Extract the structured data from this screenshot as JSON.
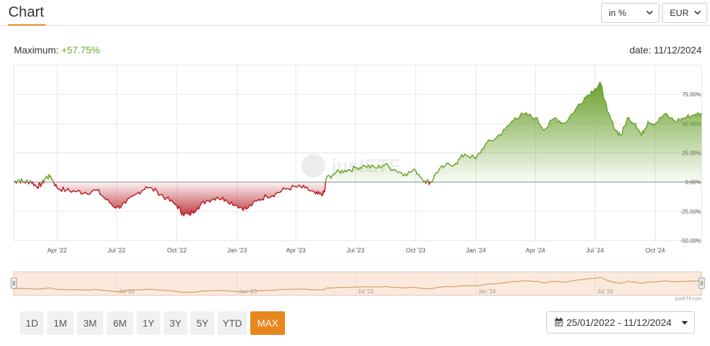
{
  "header": {
    "title": "Chart",
    "unit_select": "in %",
    "currency_select": "EUR"
  },
  "summary": {
    "maximum_label": "Maximum:",
    "maximum_value": "+57.75%",
    "date_label": "date: 11/12/2024"
  },
  "watermark": "justETF",
  "credit": "justETF.com",
  "periods": [
    {
      "label": "1D",
      "active": false
    },
    {
      "label": "1M",
      "active": false
    },
    {
      "label": "3M",
      "active": false
    },
    {
      "label": "6M",
      "active": false
    },
    {
      "label": "1Y",
      "active": false
    },
    {
      "label": "3Y",
      "active": false
    },
    {
      "label": "5Y",
      "active": false
    },
    {
      "label": "YTD",
      "active": false
    },
    {
      "label": "MAX",
      "active": true
    }
  ],
  "date_range": "25/01/2022 - 11/12/2024",
  "colors": {
    "positive": "#6aa12c",
    "negative": "#b61c24",
    "accent": "#e8871e",
    "navigator_line": "#d9a06b",
    "navigator_fill": "#fbe9dd"
  },
  "chart_data": {
    "type": "area",
    "x_start": "2022-01-25",
    "x_end": "2024-12-11",
    "y_unit": "%",
    "ylim": [
      -50,
      100
    ],
    "y_ticks": [
      75,
      50,
      25,
      0,
      -25,
      -50
    ],
    "y_tick_labels": [
      "75.00%",
      "50.00%",
      "25.00%",
      "0.00%",
      "-25.00%",
      "-50.00%"
    ],
    "x_ticks": [
      "2022-04-01",
      "2022-07-01",
      "2022-10-01",
      "2023-01-01",
      "2023-04-01",
      "2023-07-01",
      "2023-10-01",
      "2024-01-01",
      "2024-04-01",
      "2024-07-01",
      "2024-10-01"
    ],
    "x_tick_labels": [
      "Apr '22",
      "Jul '22",
      "Oct '22",
      "Jan '23",
      "Apr '23",
      "Jul '23",
      "Oct '23",
      "Jan '24",
      "Apr '24",
      "Jul '24",
      "Oct '24"
    ],
    "navigator_tick_labels": [
      "Jul '22",
      "Jan '23",
      "Jul '23",
      "Jan '24",
      "Jul '24"
    ],
    "navigator_ticks": [
      "2022-07-01",
      "2023-01-01",
      "2023-07-01",
      "2024-01-01",
      "2024-07-01"
    ],
    "grid": true,
    "series": [
      {
        "values": [
          [
            "2022-01-25",
            0
          ],
          [
            "2022-02-01",
            2
          ],
          [
            "2022-02-10",
            0
          ],
          [
            "2022-02-20",
            1
          ],
          [
            "2022-03-01",
            -4
          ],
          [
            "2022-03-08",
            -2
          ],
          [
            "2022-03-15",
            4
          ],
          [
            "2022-03-22",
            5
          ],
          [
            "2022-04-01",
            -5
          ],
          [
            "2022-04-15",
            -7
          ],
          [
            "2022-05-01",
            -8
          ],
          [
            "2022-05-15",
            -9
          ],
          [
            "2022-06-01",
            -7
          ],
          [
            "2022-06-15",
            -15
          ],
          [
            "2022-07-01",
            -22
          ],
          [
            "2022-07-15",
            -18
          ],
          [
            "2022-08-01",
            -10
          ],
          [
            "2022-08-15",
            -4
          ],
          [
            "2022-09-01",
            -8
          ],
          [
            "2022-09-15",
            -14
          ],
          [
            "2022-10-01",
            -20
          ],
          [
            "2022-10-10",
            -27
          ],
          [
            "2022-10-20",
            -28
          ],
          [
            "2022-11-01",
            -22
          ],
          [
            "2022-11-15",
            -16
          ],
          [
            "2022-12-01",
            -13
          ],
          [
            "2022-12-15",
            -15
          ],
          [
            "2023-01-01",
            -20
          ],
          [
            "2023-01-15",
            -23
          ],
          [
            "2023-02-01",
            -16
          ],
          [
            "2023-02-15",
            -12
          ],
          [
            "2023-03-01",
            -10
          ],
          [
            "2023-03-15",
            -6
          ],
          [
            "2023-04-01",
            -4
          ],
          [
            "2023-04-15",
            -5
          ],
          [
            "2023-05-01",
            -10
          ],
          [
            "2023-05-10",
            -11
          ],
          [
            "2023-05-15",
            -8
          ],
          [
            "2023-05-17",
            3
          ],
          [
            "2023-06-01",
            8
          ],
          [
            "2023-06-15",
            10
          ],
          [
            "2023-07-01",
            12
          ],
          [
            "2023-07-15",
            14
          ],
          [
            "2023-08-01",
            12
          ],
          [
            "2023-08-15",
            15
          ],
          [
            "2023-09-01",
            10
          ],
          [
            "2023-09-15",
            7
          ],
          [
            "2023-10-01",
            10
          ],
          [
            "2023-10-15",
            1
          ],
          [
            "2023-10-25",
            0
          ],
          [
            "2023-11-01",
            8
          ],
          [
            "2023-11-15",
            14
          ],
          [
            "2023-12-01",
            16
          ],
          [
            "2023-12-15",
            24
          ],
          [
            "2024-01-01",
            20
          ],
          [
            "2024-01-15",
            32
          ],
          [
            "2024-02-01",
            38
          ],
          [
            "2024-02-15",
            45
          ],
          [
            "2024-03-01",
            55
          ],
          [
            "2024-03-15",
            58
          ],
          [
            "2024-04-01",
            55
          ],
          [
            "2024-04-15",
            45
          ],
          [
            "2024-05-01",
            55
          ],
          [
            "2024-05-15",
            50
          ],
          [
            "2024-06-01",
            62
          ],
          [
            "2024-06-15",
            72
          ],
          [
            "2024-07-01",
            80
          ],
          [
            "2024-07-10",
            84
          ],
          [
            "2024-07-20",
            60
          ],
          [
            "2024-08-01",
            45
          ],
          [
            "2024-08-10",
            40
          ],
          [
            "2024-08-20",
            55
          ],
          [
            "2024-09-01",
            50
          ],
          [
            "2024-09-10",
            40
          ],
          [
            "2024-09-20",
            52
          ],
          [
            "2024-10-01",
            50
          ],
          [
            "2024-10-15",
            58
          ],
          [
            "2024-11-01",
            52
          ],
          [
            "2024-11-15",
            55
          ],
          [
            "2024-12-01",
            58
          ],
          [
            "2024-12-11",
            57.75
          ]
        ]
      }
    ]
  }
}
